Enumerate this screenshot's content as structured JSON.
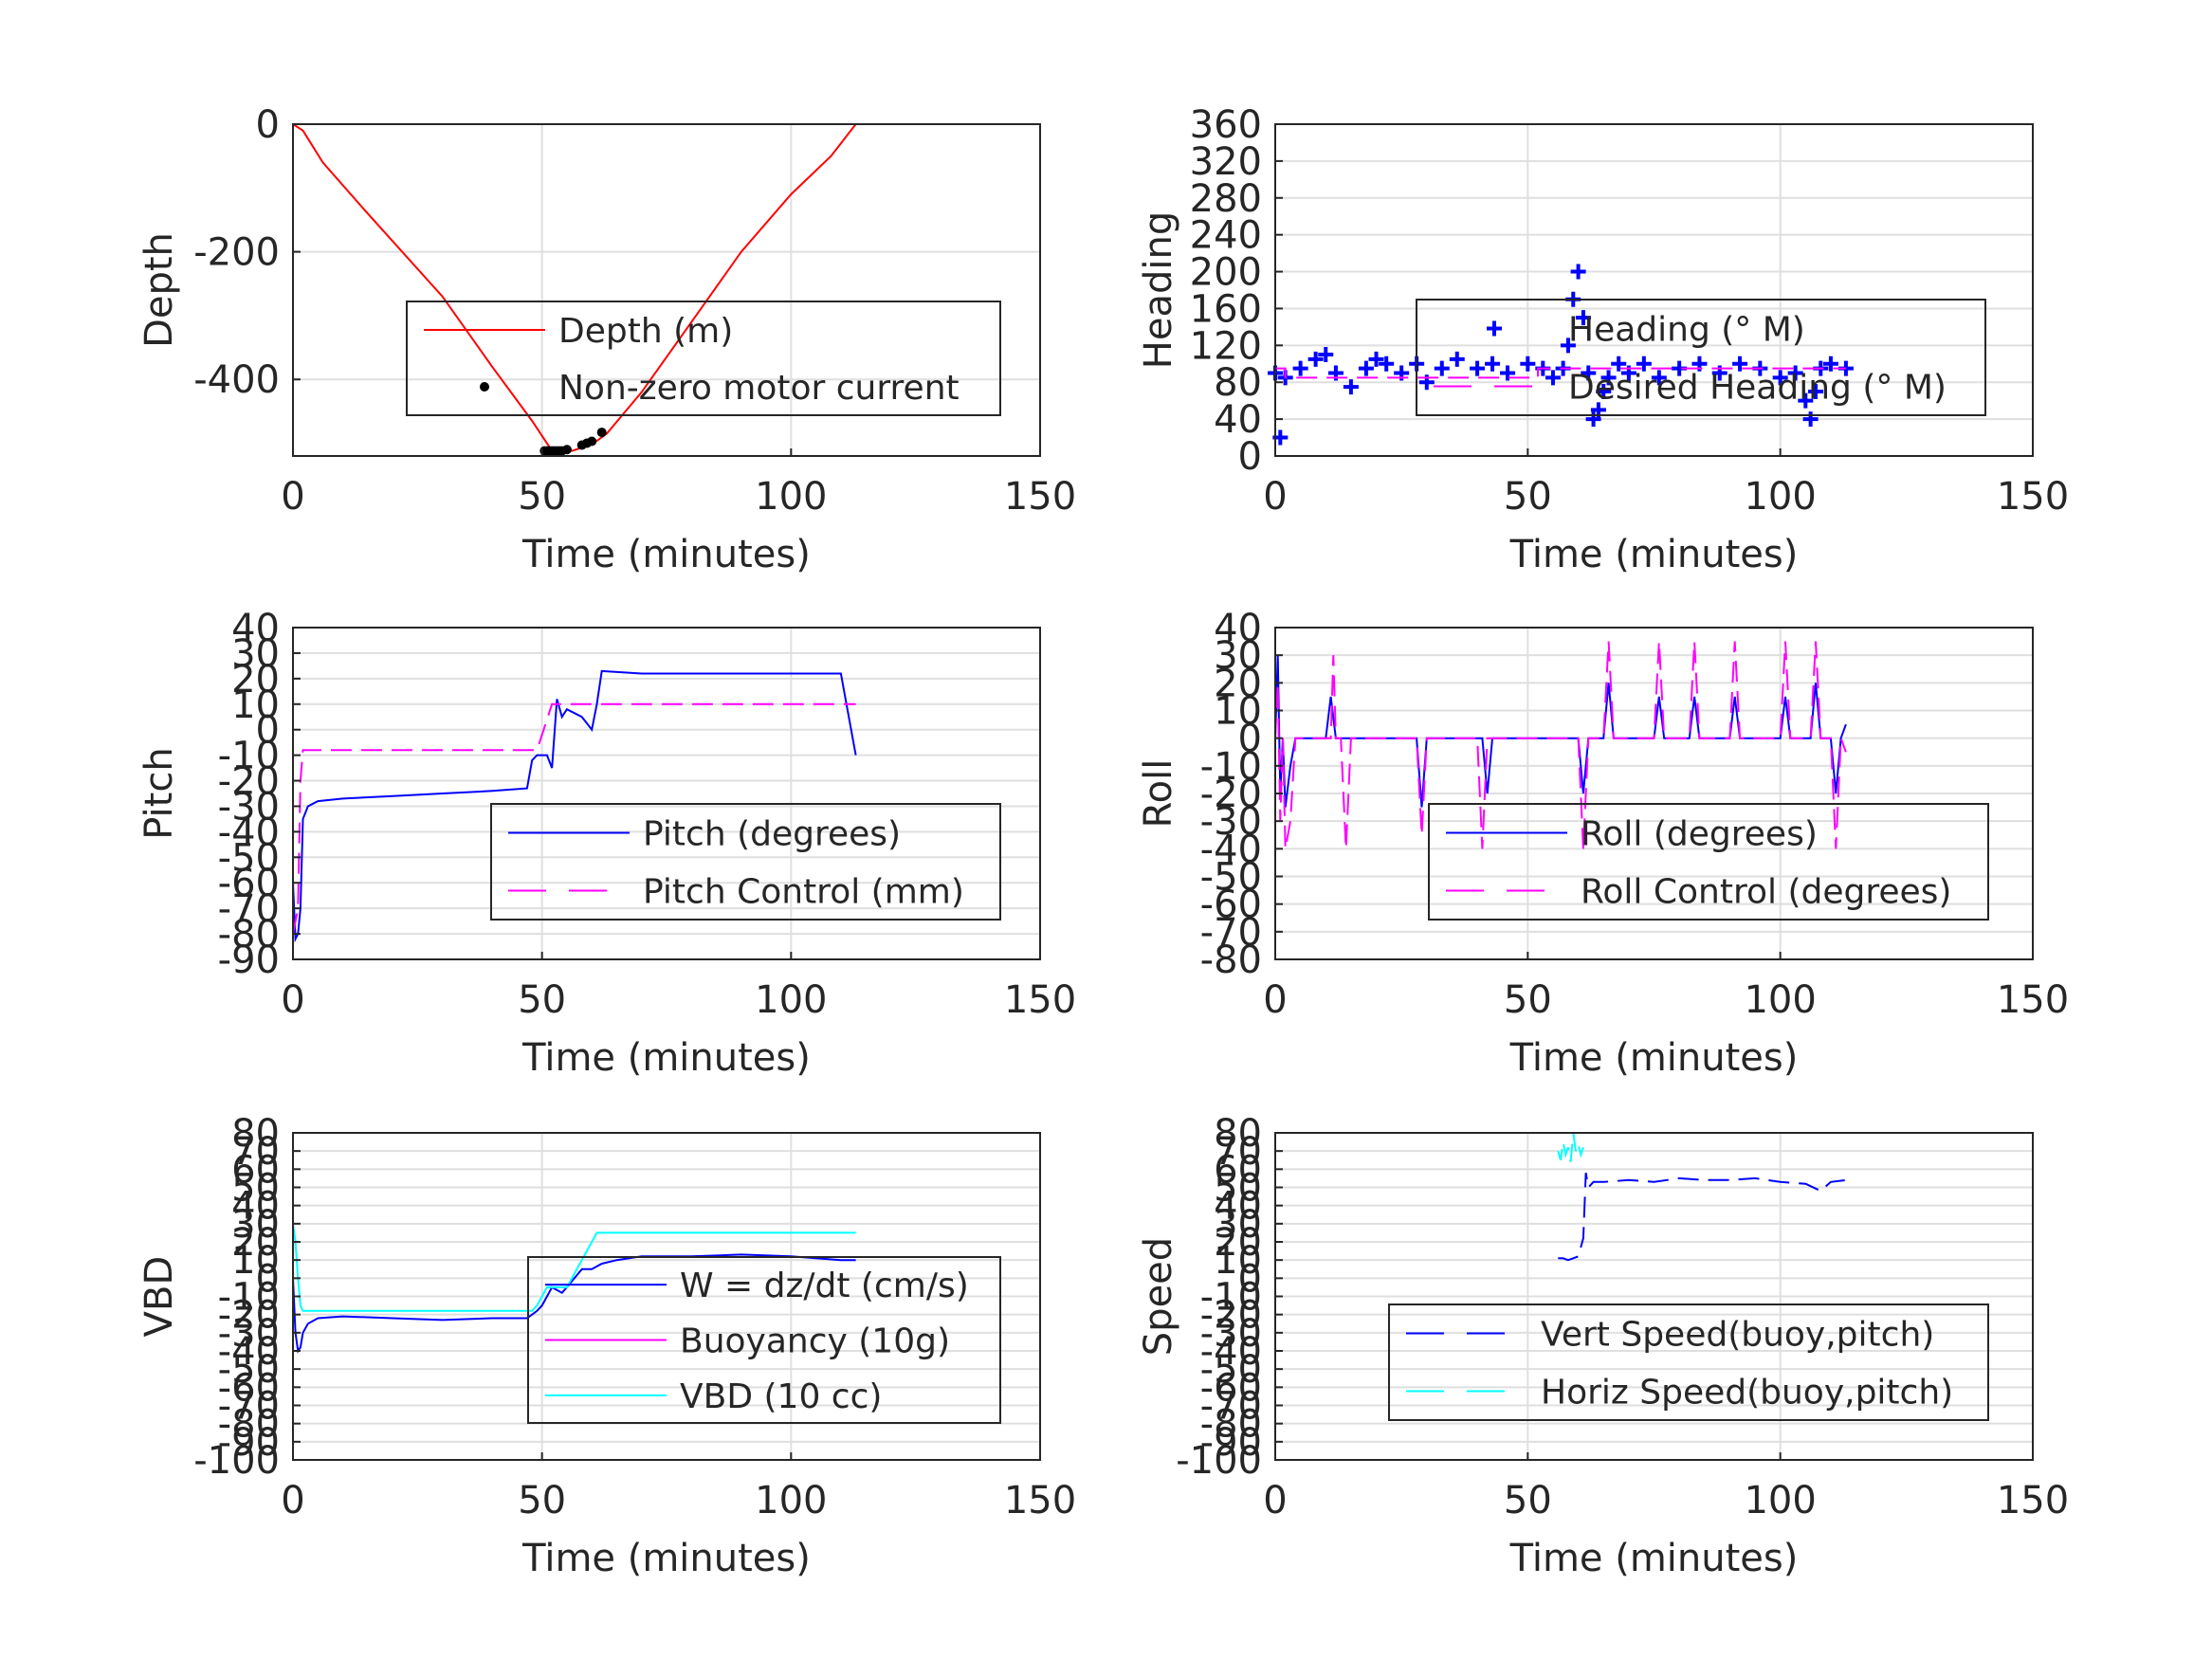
{
  "chart_data": [
    {
      "type": "line",
      "xlabel": "Time (minutes)",
      "ylabel": "Depth",
      "xlim": [
        0,
        150
      ],
      "ylim": [
        -520,
        0
      ],
      "xticks": [
        0,
        50,
        100,
        150
      ],
      "yticks": [
        0,
        -200,
        -400
      ],
      "ytick_labels": [
        "0",
        "-200",
        "-400"
      ],
      "grid": true,
      "legend_position": "lower-right",
      "series": [
        {
          "name": "Depth (m)",
          "color": "#ff0000",
          "style": "solid",
          "x": [
            0,
            2,
            6,
            15,
            30,
            40,
            48,
            52,
            56,
            60,
            63,
            70,
            80,
            90,
            100,
            108,
            113
          ],
          "y": [
            0,
            -10,
            -60,
            -140,
            -270,
            -380,
            -465,
            -512,
            -512,
            -502,
            -485,
            -420,
            -310,
            -200,
            -110,
            -50,
            0
          ]
        },
        {
          "name": "Non-zero motor current",
          "color": "#000000",
          "style": "marker-dot",
          "x": [
            50.5,
            51,
            51.5,
            52,
            52.5,
            53,
            53.5,
            54,
            55,
            58,
            59,
            60,
            62
          ],
          "y": [
            -512,
            -512,
            -512,
            -512,
            -512,
            -512,
            -512,
            -512,
            -510,
            -503,
            -500,
            -497,
            -483
          ]
        }
      ]
    },
    {
      "type": "scatter",
      "xlabel": "Time (minutes)",
      "ylabel": "Heading",
      "xlim": [
        0,
        150
      ],
      "ylim": [
        0,
        360
      ],
      "xticks": [
        0,
        50,
        100,
        150
      ],
      "yticks": [
        0,
        40,
        80,
        120,
        160,
        200,
        240,
        280,
        320,
        360
      ],
      "ytick_labels": [
        "0",
        "40",
        "80",
        "120",
        "160",
        "200",
        "240",
        "280",
        "320",
        "360"
      ],
      "grid": true,
      "legend_position": "center-right",
      "series": [
        {
          "name": "Heading (° M)",
          "color": "#0000ff",
          "style": "marker-plus",
          "x": [
            0,
            1,
            2,
            5,
            8,
            10,
            12,
            15,
            18,
            20,
            22,
            25,
            28,
            30,
            33,
            36,
            40,
            43,
            46,
            50,
            53,
            55,
            57,
            58,
            59,
            60,
            61,
            62,
            63,
            64,
            65,
            66,
            68,
            70,
            73,
            76,
            80,
            84,
            88,
            92,
            96,
            100,
            103,
            105,
            106,
            107,
            108,
            110,
            113
          ],
          "y": [
            90,
            20,
            85,
            95,
            105,
            110,
            90,
            75,
            95,
            105,
            100,
            90,
            100,
            80,
            95,
            105,
            95,
            100,
            90,
            100,
            95,
            85,
            95,
            120,
            170,
            200,
            150,
            90,
            40,
            50,
            70,
            85,
            100,
            90,
            100,
            85,
            95,
            100,
            90,
            100,
            95,
            85,
            90,
            60,
            40,
            70,
            95,
            100,
            95
          ]
        },
        {
          "name": "Desired Heading (° M)",
          "color": "#ff00ff",
          "style": "dashed",
          "x": [
            0,
            2,
            2,
            52,
            52,
            113
          ],
          "y": [
            95,
            95,
            85,
            85,
            95,
            95
          ]
        }
      ]
    },
    {
      "type": "line",
      "xlabel": "Time (minutes)",
      "ylabel": "Pitch",
      "xlim": [
        0,
        150
      ],
      "ylim": [
        -90,
        40
      ],
      "xticks": [
        0,
        50,
        100,
        150
      ],
      "yticks": [
        -90,
        -80,
        -70,
        -60,
        -50,
        -40,
        -30,
        -20,
        -10,
        0,
        10,
        20,
        30,
        40
      ],
      "ytick_labels": [
        "-90",
        "-80",
        "-70",
        "-60",
        "-50",
        "-40",
        "-30",
        "-20",
        "-10",
        "0",
        "10",
        "20",
        "30",
        "40"
      ],
      "grid": true,
      "legend_position": "lower-right",
      "series": [
        {
          "name": "Pitch (degrees)",
          "color": "#0000ff",
          "style": "solid",
          "x": [
            0,
            0.5,
            1,
            1.5,
            2,
            3,
            5,
            10,
            20,
            30,
            40,
            47,
            48,
            49,
            50,
            51,
            52,
            53,
            54,
            55,
            58,
            60,
            61,
            62,
            70,
            80,
            90,
            100,
            110,
            113
          ],
          "y": [
            -60,
            -82,
            -80,
            -70,
            -35,
            -30,
            -28,
            -27,
            -26,
            -25,
            -24,
            -23,
            -12,
            -10,
            -10,
            -10,
            -15,
            12,
            5,
            8,
            5,
            0,
            10,
            23,
            22,
            22,
            22,
            22,
            22,
            -10
          ]
        },
        {
          "name": "Pitch Control (mm)",
          "color": "#ff00ff",
          "style": "dashed",
          "x": [
            0,
            1,
            1.5,
            2,
            3,
            10,
            30,
            48,
            49,
            52,
            61,
            62,
            113
          ],
          "y": [
            -80,
            -70,
            -20,
            -8,
            -8,
            -8,
            -8,
            -8,
            -8,
            10,
            10,
            10,
            10
          ]
        }
      ]
    },
    {
      "type": "line",
      "xlabel": "Time (minutes)",
      "ylabel": "Roll",
      "xlim": [
        0,
        150
      ],
      "ylim": [
        -80,
        40
      ],
      "xticks": [
        0,
        50,
        100,
        150
      ],
      "yticks": [
        -80,
        -70,
        -60,
        -50,
        -40,
        -30,
        -20,
        -10,
        0,
        10,
        20,
        30,
        40
      ],
      "ytick_labels": [
        "-80",
        "-70",
        "-60",
        "-50",
        "-40",
        "-30",
        "-20",
        "-10",
        "0",
        "10",
        "20",
        "30",
        "40"
      ],
      "grid": true,
      "legend_position": "lower-right",
      "series": [
        {
          "name": "Roll (degrees)",
          "color": "#0000ff",
          "style": "solid",
          "x": [
            0,
            0.5,
            1,
            1.5,
            2,
            3,
            4,
            5,
            10,
            11,
            12,
            13,
            28,
            29,
            30,
            31,
            41,
            42,
            43,
            60,
            61,
            62,
            63,
            65,
            66,
            67,
            68,
            75,
            76,
            77,
            78,
            82,
            83,
            84,
            90,
            91,
            92,
            100,
            101,
            102,
            106,
            107,
            108,
            110,
            111,
            112,
            113
          ],
          "y": [
            0,
            30,
            -20,
            0,
            -25,
            -10,
            0,
            0,
            0,
            15,
            0,
            0,
            0,
            -25,
            0,
            0,
            0,
            -20,
            0,
            0,
            -20,
            0,
            0,
            0,
            20,
            0,
            0,
            0,
            15,
            0,
            0,
            0,
            15,
            0,
            0,
            15,
            0,
            0,
            15,
            0,
            0,
            20,
            0,
            0,
            -20,
            0,
            5
          ]
        },
        {
          "name": "Roll Control (degrees)",
          "color": "#ff00ff",
          "style": "dashed",
          "x": [
            0,
            0.5,
            1,
            1.5,
            2,
            3,
            4,
            5,
            11,
            11.5,
            12,
            13,
            14,
            15,
            28,
            29,
            30,
            31,
            40,
            41,
            42,
            43,
            60,
            61,
            62,
            65,
            66,
            67,
            68,
            75,
            76,
            77,
            78,
            82,
            83,
            84,
            90,
            91,
            92,
            100,
            101,
            102,
            106,
            107,
            108,
            110,
            111,
            112,
            113
          ],
          "y": [
            0,
            20,
            -30,
            0,
            -40,
            -30,
            0,
            0,
            0,
            30,
            0,
            0,
            -40,
            0,
            0,
            -35,
            0,
            0,
            0,
            -40,
            0,
            0,
            0,
            -40,
            0,
            0,
            35,
            0,
            0,
            0,
            35,
            0,
            0,
            0,
            35,
            0,
            0,
            35,
            0,
            0,
            35,
            0,
            0,
            35,
            0,
            0,
            -40,
            0,
            -5
          ]
        }
      ]
    },
    {
      "type": "line",
      "xlabel": "Time (minutes)",
      "ylabel": "VBD",
      "xlim": [
        0,
        150
      ],
      "ylim": [
        -100,
        80
      ],
      "xticks": [
        0,
        50,
        100,
        150
      ],
      "yticks": [
        -100,
        -90,
        -80,
        -70,
        -60,
        -50,
        -40,
        -30,
        -20,
        -10,
        0,
        10,
        20,
        30,
        40,
        50,
        60,
        70,
        80
      ],
      "ytick_labels": [
        "-100",
        "-90",
        "-80",
        "-70",
        "-60",
        "-50",
        "-40",
        "-30",
        "-20",
        "-10",
        "0",
        "10",
        "20",
        "30",
        "40",
        "50",
        "60",
        "70",
        "80"
      ],
      "grid": true,
      "legend_position": "lower-right",
      "series": [
        {
          "name": "W = dz/dt (cm/s)",
          "color": "#0000ff",
          "style": "solid",
          "x": [
            0,
            0.5,
            1,
            1.5,
            2,
            3,
            5,
            10,
            20,
            30,
            40,
            47,
            48,
            49,
            50,
            52,
            54,
            55,
            58,
            60,
            62,
            65,
            70,
            80,
            90,
            100,
            110,
            113
          ],
          "y": [
            0,
            -30,
            -40,
            -38,
            -30,
            -25,
            -22,
            -21,
            -22,
            -23,
            -22,
            -22,
            -20,
            -18,
            -15,
            -5,
            -8,
            -5,
            5,
            5,
            8,
            10,
            12,
            12,
            13,
            12,
            10,
            10
          ]
        },
        {
          "name": "Buoyancy (10g)",
          "color": "#ff00ff",
          "style": "solid",
          "x": [],
          "y": []
        },
        {
          "name": "VBD (10 cc)",
          "color": "#00ffff",
          "style": "solid",
          "x": [
            0,
            0.5,
            1,
            1.5,
            2,
            5,
            20,
            40,
            48,
            49,
            50,
            51,
            55,
            56,
            58,
            59,
            60,
            61,
            62,
            70,
            80,
            100,
            113
          ],
          "y": [
            30,
            20,
            0,
            -15,
            -18,
            -18,
            -18,
            -18,
            -18,
            -15,
            -10,
            -5,
            -5,
            0,
            10,
            15,
            20,
            25,
            25,
            25,
            25,
            25,
            25
          ]
        }
      ]
    },
    {
      "type": "line",
      "xlabel": "Time (minutes)",
      "ylabel": "Speed",
      "xlim": [
        0,
        150
      ],
      "ylim": [
        -100,
        80
      ],
      "xticks": [
        0,
        50,
        100,
        150
      ],
      "yticks": [
        -100,
        -90,
        -80,
        -70,
        -60,
        -50,
        -40,
        -30,
        -20,
        -10,
        0,
        10,
        20,
        30,
        40,
        50,
        60,
        70,
        80
      ],
      "ytick_labels": [
        "-100",
        "-90",
        "-80",
        "-70",
        "-60",
        "-50",
        "-40",
        "-30",
        "-20",
        "-10",
        "0",
        "10",
        "20",
        "30",
        "40",
        "50",
        "60",
        "70",
        "80"
      ],
      "grid": true,
      "legend_position": "lower-right",
      "series": [
        {
          "name": "Vert Speed(buoy,pitch)",
          "color": "#0000ff",
          "style": "dashed",
          "x": [
            56,
            57,
            58,
            59,
            60,
            61,
            61.5,
            62,
            63,
            65,
            70,
            75,
            80,
            85,
            90,
            95,
            100,
            105,
            108,
            110,
            113
          ],
          "y": [
            11,
            11,
            10,
            11,
            12,
            22,
            58,
            50,
            53,
            53,
            54,
            53,
            55,
            54,
            54,
            55,
            53,
            52,
            48,
            53,
            54
          ]
        },
        {
          "name": "Horiz Speed(buoy,pitch)",
          "color": "#00ffff",
          "style": "dashed",
          "x": [
            56,
            56.5,
            57,
            57.5,
            58,
            58.5,
            59,
            59.5,
            60,
            60.5,
            61
          ],
          "y": [
            70,
            65,
            75,
            68,
            72,
            64,
            80,
            70,
            74,
            68,
            72
          ]
        }
      ]
    }
  ]
}
